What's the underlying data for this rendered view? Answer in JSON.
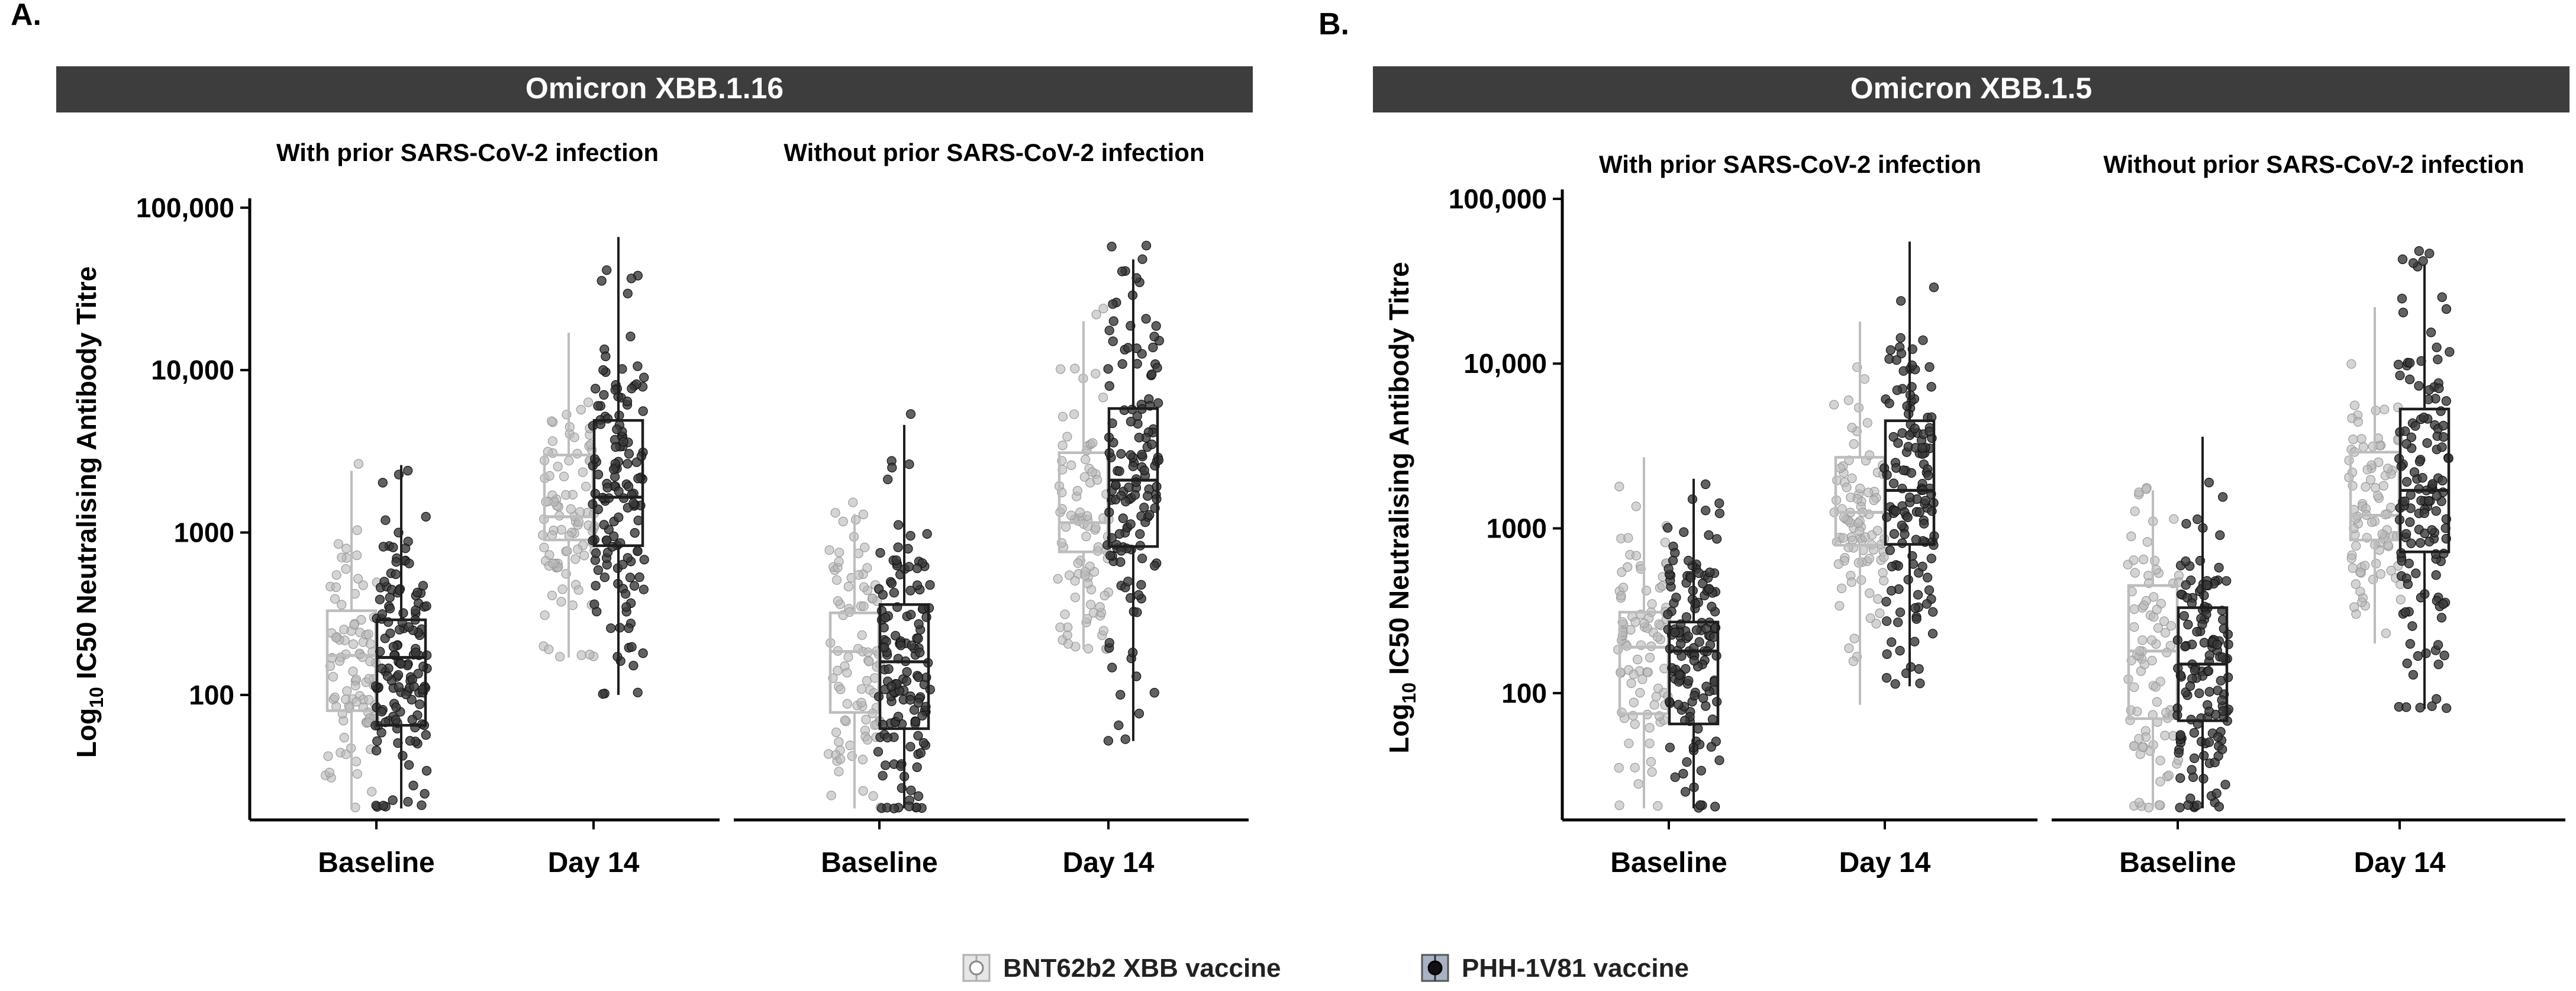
{
  "figure": {
    "legend": [
      {
        "label": "BNT62b2 XBB vaccine",
        "color": "#b8b8b8"
      },
      {
        "label": "PHH-1V81 vaccine",
        "color": "#3a3a3a"
      }
    ],
    "ylabel_prefix": "Log",
    "ylabel_sub": "10",
    "ylabel_main": " IC50 Neutralising  Antibody Titre"
  },
  "chart_data": [
    {
      "type": "box",
      "panel_letter": "A.",
      "title": "Omicron XBB.1.16",
      "scale": "log10",
      "ylim": [
        17,
        105000
      ],
      "y_ticks": [
        100,
        1000,
        10000,
        100000
      ],
      "y_tick_labels": [
        "100",
        "1000",
        "10,000",
        "100,000"
      ],
      "groups": [
        {
          "label": "With prior SARS-CoV-2 infection",
          "categories": [
            "Baseline",
            "Day 14"
          ],
          "series": [
            {
              "name": "BNT62b2 XBB vaccine",
              "boxes": [
                {
                  "min": 20,
                  "q1": 80,
                  "median": 175,
                  "q3": 330,
                  "max": 2400
                },
                {
                  "min": 170,
                  "q1": 900,
                  "median": 1250,
                  "q3": 3000,
                  "max": 17000
                }
              ]
            },
            {
              "name": "PHH-1V81 vaccine",
              "boxes": [
                {
                  "min": 20,
                  "q1": 65,
                  "median": 170,
                  "q3": 290,
                  "max": 2600
                },
                {
                  "min": 100,
                  "q1": 830,
                  "median": 1650,
                  "q3": 4900,
                  "max": 66000
                }
              ]
            }
          ]
        },
        {
          "label": "Without prior SARS-CoV-2 infection",
          "categories": [
            "Baseline",
            "Day 14"
          ],
          "series": [
            {
              "name": "BNT62b2 XBB vaccine",
              "boxes": [
                {
                  "min": 20,
                  "q1": 78,
                  "median": 185,
                  "q3": 320,
                  "max": 1300
                },
                {
                  "min": 190,
                  "q1": 760,
                  "median": 1150,
                  "q3": 3100,
                  "max": 20000
                }
              ]
            },
            {
              "name": "PHH-1V81 vaccine",
              "boxes": [
                {
                  "min": 20,
                  "q1": 62,
                  "median": 160,
                  "q3": 360,
                  "max": 4600
                },
                {
                  "min": 52,
                  "q1": 820,
                  "median": 2100,
                  "q3": 5800,
                  "max": 48000
                }
              ]
            }
          ]
        }
      ]
    },
    {
      "type": "box",
      "panel_letter": "B.",
      "title": "Omicron XBB.1.5",
      "scale": "log10",
      "ylim": [
        17,
        105000
      ],
      "y_ticks": [
        100,
        1000,
        10000,
        100000
      ],
      "y_tick_labels": [
        "100",
        "1000",
        "10,000",
        "100,000"
      ],
      "groups": [
        {
          "label": "With prior SARS-CoV-2 infection",
          "categories": [
            "Baseline",
            "Day 14"
          ],
          "series": [
            {
              "name": "BNT62b2 XBB vaccine",
              "boxes": [
                {
                  "min": 20,
                  "q1": 75,
                  "median": 190,
                  "q3": 310,
                  "max": 2700
                },
                {
                  "min": 85,
                  "q1": 790,
                  "median": 1250,
                  "q3": 2700,
                  "max": 18000
                }
              ]
            },
            {
              "name": "PHH-1V81 vaccine",
              "boxes": [
                {
                  "min": 20,
                  "q1": 65,
                  "median": 180,
                  "q3": 270,
                  "max": 2000
                },
                {
                  "min": 110,
                  "q1": 800,
                  "median": 1700,
                  "q3": 4500,
                  "max": 55000
                }
              ]
            }
          ]
        },
        {
          "label": "Without prior SARS-CoV-2 infection",
          "categories": [
            "Baseline",
            "Day 14"
          ],
          "series": [
            {
              "name": "BNT62b2 XBB vaccine",
              "boxes": [
                {
                  "min": 20,
                  "q1": 70,
                  "median": 180,
                  "q3": 450,
                  "max": 1700
                },
                {
                  "min": 200,
                  "q1": 850,
                  "median": 1200,
                  "q3": 2900,
                  "max": 22000
                }
              ]
            },
            {
              "name": "PHH-1V81 vaccine",
              "boxes": [
                {
                  "min": 20,
                  "q1": 68,
                  "median": 150,
                  "q3": 330,
                  "max": 3600
                },
                {
                  "min": 80,
                  "q1": 720,
                  "median": 1700,
                  "q3": 5300,
                  "max": 40000
                }
              ]
            }
          ]
        }
      ]
    }
  ]
}
